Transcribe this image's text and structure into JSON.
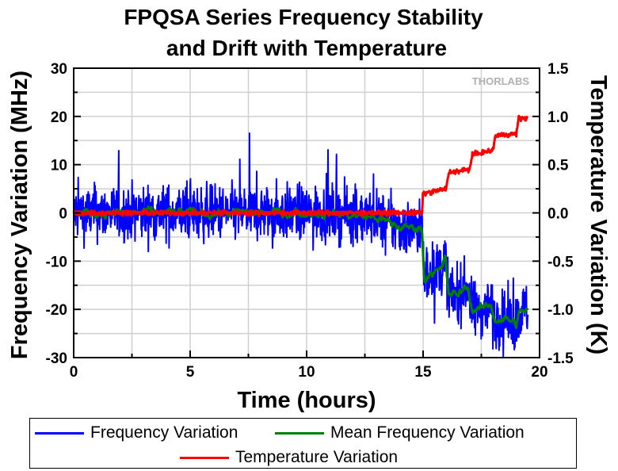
{
  "chart_data": {
    "type": "line",
    "title": "FPQSA Series Frequency Stability and Drift with Temperature",
    "title_lines": [
      "FPQSA Series Frequency Stability",
      "and Drift with Temperature"
    ],
    "xlabel": "Time (hours)",
    "ylabel": "Frequency Variation (MHz)",
    "y2label": "Temperature Variation (K)",
    "xlim": [
      0,
      20
    ],
    "ylim": [
      -30,
      30
    ],
    "y2lim": [
      -1.5,
      1.5
    ],
    "x_ticks": [
      "0",
      "5",
      "10",
      "15",
      "20"
    ],
    "y_ticks": [
      "30",
      "20",
      "10",
      "0",
      "-10",
      "-20",
      "-30"
    ],
    "y2_ticks": [
      "1.5",
      "1.0",
      "0.5",
      "0.0",
      "-0.5",
      "-1.0",
      "-1.5"
    ],
    "grid": true,
    "legend_position": "bottom",
    "watermark": "THORLABS",
    "series": [
      {
        "name": "Frequency Variation",
        "axis": "left",
        "color": "#0000ff",
        "style": "noisy",
        "noise": 5.5,
        "x": [
          0,
          1,
          3,
          5,
          7,
          9,
          11,
          13,
          14,
          14.95,
          15.05,
          15.3,
          15.8,
          15.95,
          16.1,
          16.5,
          16.9,
          17.1,
          17.5,
          17.9,
          18.1,
          18.6,
          19.0,
          19.1,
          19.5
        ],
        "values": [
          0,
          0,
          0,
          0,
          0,
          0,
          0,
          -1,
          -3,
          -3,
          -14,
          -12,
          -12,
          -9,
          -17,
          -17,
          -15,
          -20,
          -20,
          -19,
          -22,
          -22,
          -23,
          -21,
          -20
        ]
      },
      {
        "name": "Mean Frequency Variation",
        "axis": "left",
        "color": "#008000",
        "style": "smooth",
        "noise": 1.0,
        "x": [
          0,
          1,
          3,
          5,
          7,
          9,
          11,
          13,
          14,
          14.95,
          15.05,
          15.3,
          15.8,
          15.95,
          16.1,
          16.5,
          16.9,
          17.1,
          17.5,
          17.9,
          18.1,
          18.6,
          19.0,
          19.1,
          19.5
        ],
        "values": [
          0,
          0,
          0,
          0,
          0,
          0,
          0,
          -1,
          -3,
          -3,
          -14,
          -12,
          -12,
          -9,
          -17,
          -17,
          -15,
          -20,
          -20,
          -19,
          -22,
          -22,
          -23,
          -21,
          -20
        ]
      },
      {
        "name": "Temperature Variation",
        "axis": "right",
        "color": "#ff0000",
        "style": "steps",
        "noise": 0.025,
        "x": [
          0,
          14.95,
          15.0,
          16.0,
          16.1,
          17.0,
          17.1,
          18.0,
          18.1,
          19.0,
          19.1,
          19.5
        ],
        "values": [
          0,
          0,
          0.2,
          0.25,
          0.42,
          0.45,
          0.6,
          0.65,
          0.8,
          0.82,
          0.98,
          0.98
        ]
      }
    ]
  }
}
